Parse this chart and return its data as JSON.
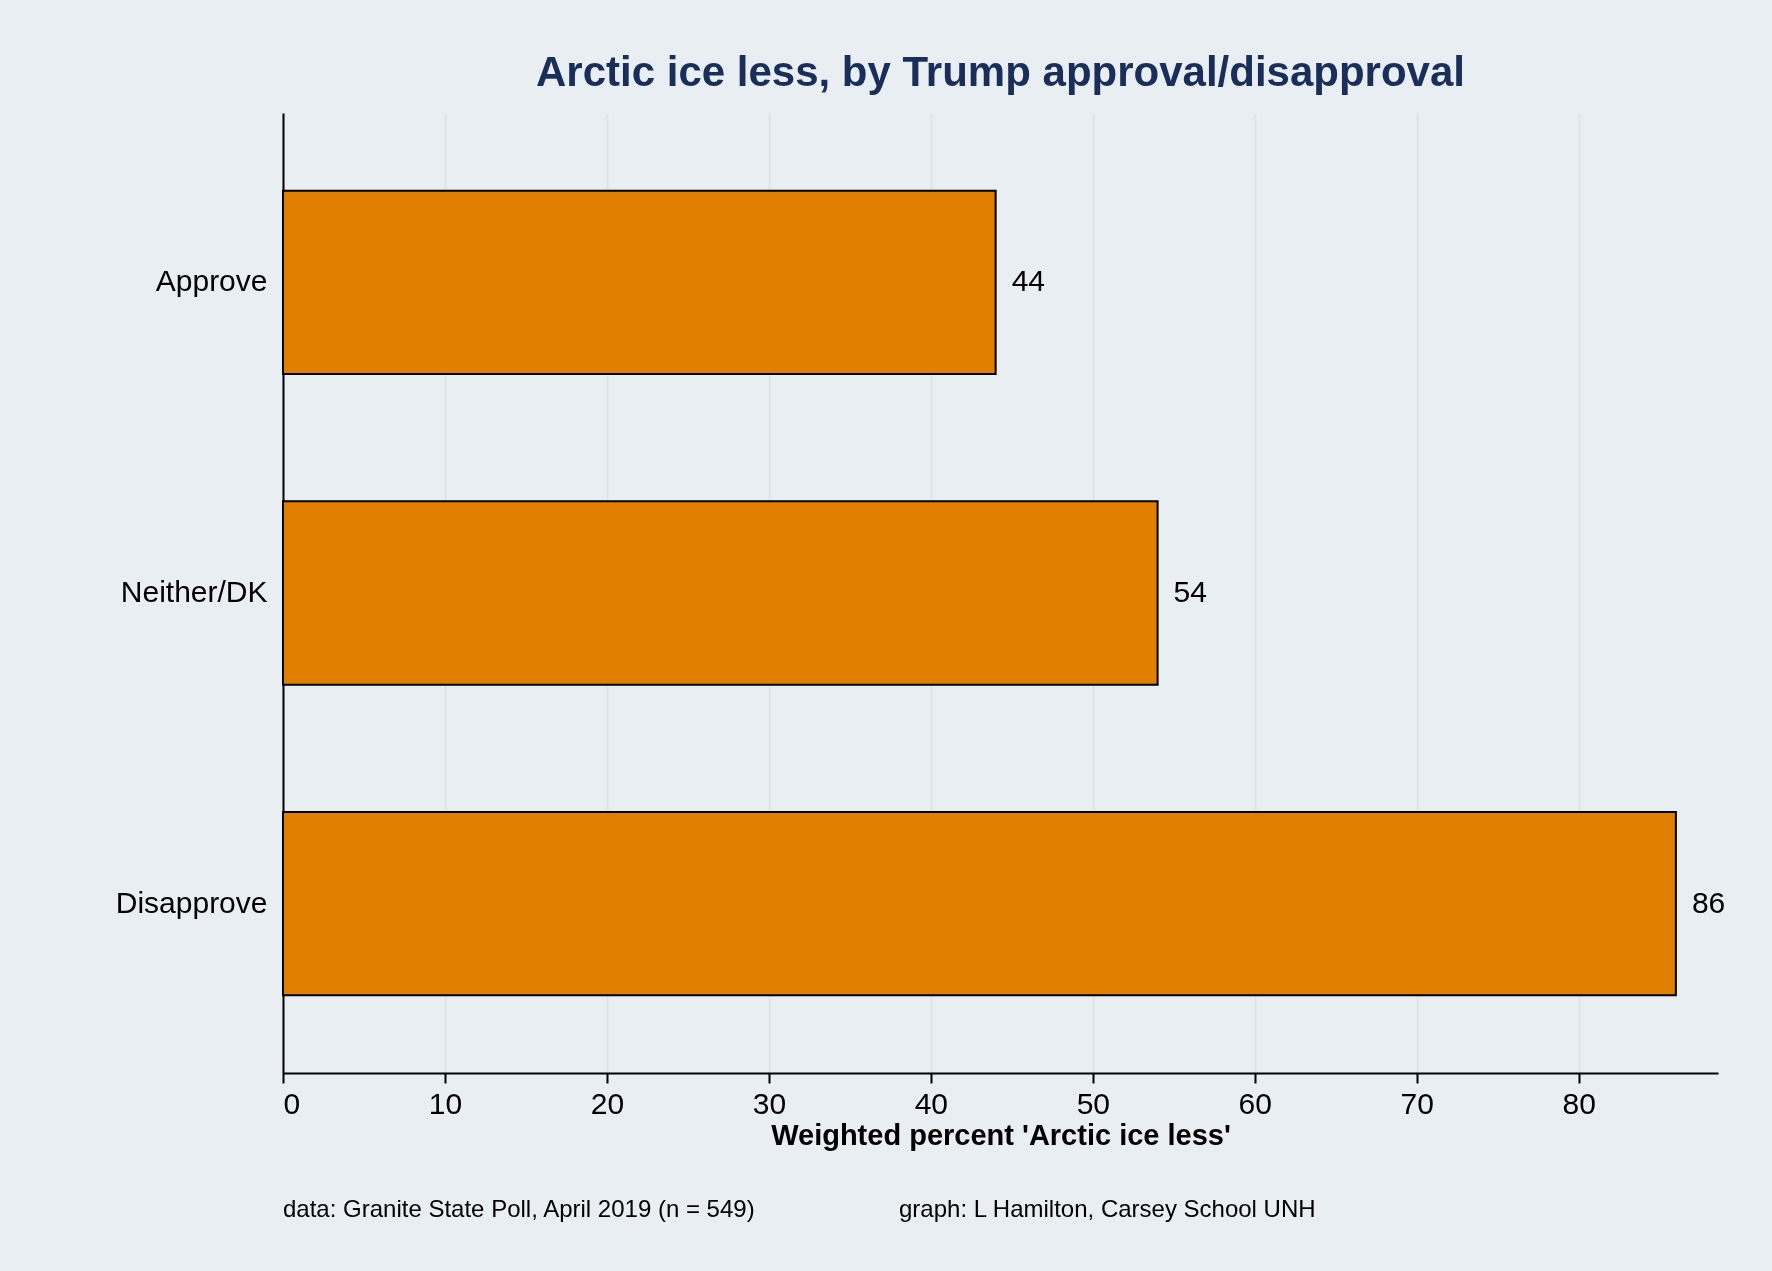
{
  "chart_data": {
    "type": "bar",
    "orientation": "horizontal",
    "title": "Arctic ice less, by Trump approval/disapproval",
    "categories": [
      "Approve",
      "Neither/DK",
      "Disapprove"
    ],
    "values": [
      44,
      54,
      86
    ],
    "color": "#e07f00",
    "data_labels": true,
    "xlabel": "Weighted percent 'Arctic ice less'",
    "xlim": [
      0,
      88.6
    ],
    "xticks": [
      0,
      10,
      20,
      30,
      40,
      50,
      60,
      70,
      80
    ],
    "grid": "x",
    "annotations": [
      "data:  Granite State Poll, April 2019  (n = 549)",
      "graph:  L Hamilton, Carsey School UNH"
    ]
  }
}
